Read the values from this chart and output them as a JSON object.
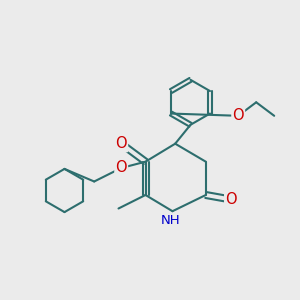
{
  "bg_color": "#ebebeb",
  "bond_color": "#2d6e6e",
  "atom_colors": {
    "O": "#cc0000",
    "N": "#0000cc",
    "C": "#2d6e6e",
    "H": "#2d6e6e"
  },
  "line_width": 1.5,
  "font_size": 9.5
}
